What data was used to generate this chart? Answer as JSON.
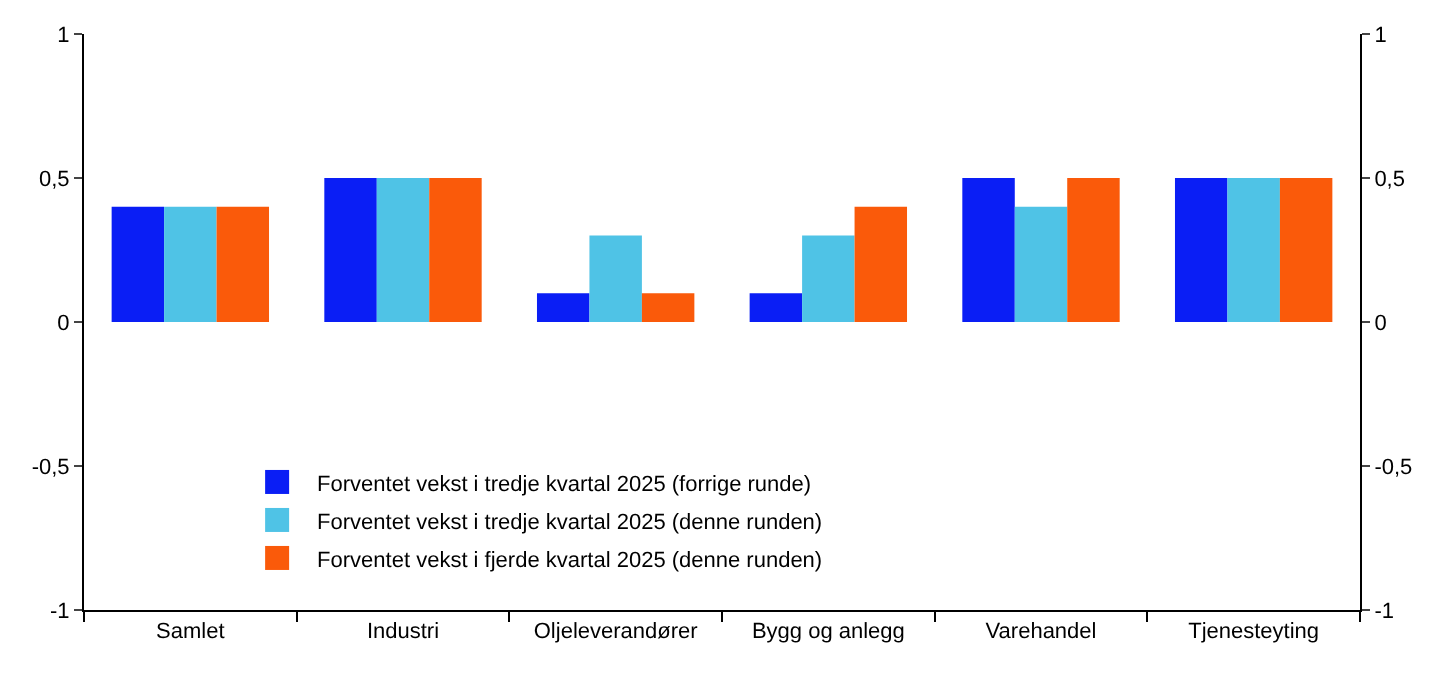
{
  "chart_data": {
    "type": "bar",
    "categories": [
      "Samlet",
      "Industri",
      "Oljeleverandører",
      "Bygg og anlegg",
      "Varehandel",
      "Tjenesteyting"
    ],
    "series": [
      {
        "name": "Forventet vekst i tredje kvartal 2025 (forrige runde)",
        "color": "#0a1ef5",
        "values": [
          0.4,
          0.5,
          0.1,
          0.1,
          0.5,
          0.5
        ]
      },
      {
        "name": "Forventet vekst i tredje kvartal 2025 (denne runden)",
        "color": "#4fc3e6",
        "values": [
          0.4,
          0.5,
          0.3,
          0.3,
          0.4,
          0.5
        ]
      },
      {
        "name": "Forventet vekst i fjerde kvartal 2025 (denne runden)",
        "color": "#fa5a0a",
        "values": [
          0.4,
          0.5,
          0.1,
          0.4,
          0.5,
          0.5
        ]
      }
    ],
    "ylim": [
      -1,
      1
    ],
    "yticks": [
      -1,
      {
        "value": -0.5,
        "label": "-0,5"
      },
      0,
      {
        "value": 0.5,
        "label": "0,5"
      },
      1
    ],
    "y2lim": [
      -1,
      1
    ],
    "y2ticks": [
      -1,
      {
        "value": -0.5,
        "label": "-0,5"
      },
      0,
      {
        "value": 0.5,
        "label": "0,5"
      },
      1
    ],
    "grid": false,
    "legend": "bottom left"
  }
}
